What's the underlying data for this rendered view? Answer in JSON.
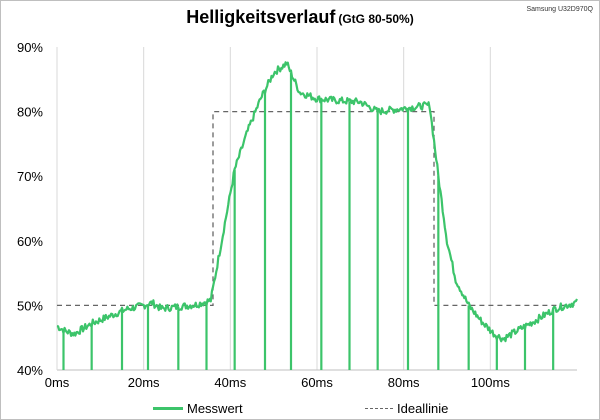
{
  "title": "Helligkeitsverlauf",
  "subtitle": "(GtG 80-50%)",
  "device_label": "Samsung U32D970Q",
  "colors": {
    "measured": "#3cc46a",
    "ideal": "#666666",
    "grid": "#d9d9d9"
  },
  "chart_data": {
    "type": "line",
    "xlim": [
      0,
      120
    ],
    "ylim": [
      40,
      90
    ],
    "x_ticks": [
      0,
      20,
      40,
      60,
      80,
      100
    ],
    "y_ticks": [
      40,
      50,
      60,
      70,
      80,
      90
    ],
    "x_tick_labels": [
      "0ms",
      "20ms",
      "40ms",
      "60ms",
      "80ms",
      "100ms"
    ],
    "y_tick_labels": [
      "40%",
      "50%",
      "60%",
      "70%",
      "80%",
      "90%"
    ],
    "grid": "vertical",
    "legend_position": "bottom",
    "series": [
      {
        "name": "Messwert",
        "x": [
          0,
          2,
          4,
          8,
          12,
          16,
          20,
          22,
          24,
          28,
          32,
          35.5,
          38,
          41,
          44,
          47,
          50,
          53,
          56,
          60,
          65,
          70,
          74,
          80,
          86,
          88,
          90,
          92,
          95,
          98,
          101,
          103,
          106,
          110,
          115,
          120
        ],
        "y": [
          46.8,
          46.0,
          45.6,
          47.2,
          48.3,
          49.4,
          50.0,
          50.4,
          49.5,
          49.8,
          50.1,
          50.8,
          60.0,
          71.0,
          77.0,
          82.0,
          86.0,
          87.5,
          83.0,
          82.0,
          81.7,
          81.5,
          80.0,
          80.5,
          81.0,
          70.0,
          60.0,
          54.0,
          50.0,
          47.5,
          45.5,
          44.8,
          46.0,
          47.5,
          49.5,
          50.5
        ],
        "dips_x": [
          1.5,
          8,
          15,
          21,
          28,
          34.5,
          41,
          48,
          54,
          61,
          67.5,
          74,
          81,
          88,
          95,
          101.5,
          108,
          114.5
        ],
        "dip_floor": 40
      },
      {
        "name": "Ideallinie",
        "x": [
          0,
          36,
          36,
          87,
          87,
          120
        ],
        "y": [
          50,
          50,
          80,
          80,
          50,
          50
        ]
      }
    ]
  }
}
